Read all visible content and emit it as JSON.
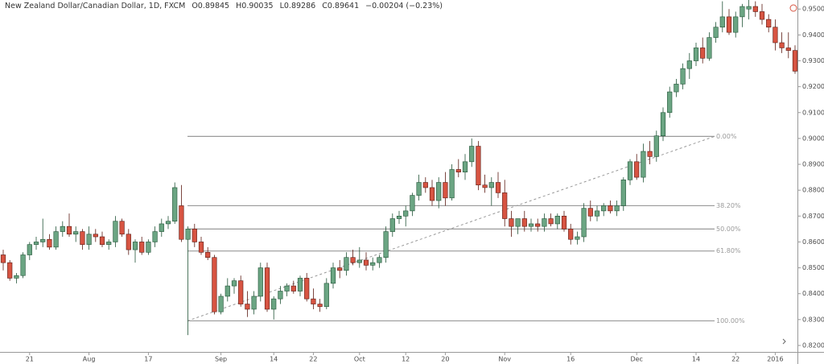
{
  "header": {
    "symbol": "New Zealand Dollar/Canadian Dollar, 1D, FXCM",
    "open": "O0.89845",
    "high": "H0.90035",
    "low": "L0.89286",
    "close": "C0.89641",
    "change": "−0.00204 (−0.23%)"
  },
  "chart_data": {
    "type": "candlestick",
    "categories": [
      null,
      null,
      null,
      null,
      "21",
      null,
      null,
      null,
      null,
      null,
      null,
      null,
      null,
      "Aug",
      null,
      null,
      null,
      null,
      null,
      null,
      null,
      null,
      "17",
      null,
      null,
      null,
      null,
      null,
      null,
      null,
      null,
      null,
      null,
      "Sep",
      null,
      null,
      null,
      null,
      null,
      null,
      null,
      "14",
      null,
      null,
      null,
      null,
      null,
      "22",
      null,
      null,
      null,
      null,
      null,
      null,
      "Oct",
      null,
      null,
      null,
      null,
      null,
      null,
      "12",
      null,
      null,
      null,
      null,
      null,
      "20",
      null,
      null,
      null,
      null,
      null,
      null,
      null,
      null,
      "Nov",
      null,
      null,
      null,
      null,
      null,
      null,
      null,
      null,
      null,
      "16",
      null,
      null,
      null,
      null,
      null,
      null,
      null,
      null,
      null,
      "Dec",
      null,
      null,
      null,
      null,
      null,
      null,
      null,
      null,
      "14",
      null,
      null,
      null,
      null,
      null,
      "22",
      null,
      null,
      null,
      null,
      null,
      "2016",
      null,
      null,
      null,
      null
    ],
    "series": [
      {
        "up_color": "#6ba583",
        "down_color": "#d75442",
        "up_border": "#225437",
        "down_border": "#5b1a13",
        "open": [
          0.855,
          0.852,
          0.846,
          0.847,
          0.855,
          0.859,
          0.86,
          0.861,
          0.858,
          0.864,
          0.866,
          0.863,
          0.864,
          0.859,
          0.863,
          0.862,
          0.859,
          0.86,
          0.868,
          0.863,
          0.857,
          0.86,
          0.856,
          0.86,
          0.864,
          0.867,
          0.868,
          0.874,
          0.861,
          0.865,
          0.86,
          0.856,
          0.854,
          0.833,
          0.839,
          0.843,
          0.845,
          0.836,
          0.834,
          0.839,
          0.85,
          0.834,
          0.838,
          0.841,
          0.843,
          0.841,
          0.846,
          0.838,
          0.836,
          0.835,
          0.844,
          0.85,
          0.849,
          0.854,
          0.852,
          0.853,
          0.851,
          0.852,
          0.854,
          0.864,
          0.869,
          0.87,
          0.872,
          0.878,
          0.883,
          0.881,
          0.876,
          0.883,
          0.877,
          0.888,
          0.887,
          0.891,
          0.897,
          0.882,
          0.881,
          0.883,
          0.879,
          0.869,
          0.866,
          0.869,
          0.866,
          0.867,
          0.866,
          0.869,
          0.867,
          0.87,
          0.865,
          0.861,
          0.862,
          0.873,
          0.87,
          0.872,
          0.874,
          0.872,
          0.874,
          0.884,
          0.891,
          0.885,
          0.895,
          0.893,
          0.901,
          0.91,
          0.918,
          0.921,
          0.927,
          0.93,
          0.935,
          0.931,
          0.939,
          0.943,
          0.947,
          0.941,
          0.947,
          0.95,
          0.951,
          0.949,
          0.946,
          0.943,
          0.937,
          0.935,
          0.934
        ],
        "high": [
          0.857,
          0.853,
          0.848,
          0.856,
          0.86,
          0.862,
          0.869,
          0.863,
          0.866,
          0.868,
          0.871,
          0.866,
          0.865,
          0.866,
          0.865,
          0.864,
          0.861,
          0.87,
          0.869,
          0.865,
          0.861,
          0.862,
          0.861,
          0.866,
          0.869,
          0.87,
          0.883,
          0.882,
          0.866,
          0.867,
          0.862,
          0.858,
          0.855,
          0.84,
          0.846,
          0.846,
          0.847,
          0.841,
          0.841,
          0.852,
          0.852,
          0.839,
          0.843,
          0.844,
          0.845,
          0.847,
          0.848,
          0.842,
          0.838,
          0.846,
          0.852,
          0.853,
          0.856,
          0.857,
          0.858,
          0.856,
          0.854,
          0.855,
          0.866,
          0.871,
          0.872,
          0.874,
          0.879,
          0.886,
          0.885,
          0.884,
          0.885,
          0.887,
          0.89,
          0.892,
          0.894,
          0.9,
          0.899,
          0.886,
          0.885,
          0.887,
          0.884,
          0.872,
          0.869,
          0.872,
          0.869,
          0.869,
          0.871,
          0.871,
          0.871,
          0.872,
          0.867,
          0.864,
          0.875,
          0.876,
          0.874,
          0.875,
          0.876,
          0.876,
          0.885,
          0.892,
          0.894,
          0.898,
          0.899,
          0.903,
          0.912,
          0.92,
          0.923,
          0.929,
          0.933,
          0.937,
          0.939,
          0.941,
          0.945,
          0.953,
          0.95,
          0.949,
          0.952,
          0.958,
          0.953,
          0.952,
          0.948,
          0.946,
          0.941,
          0.941,
          0.936
        ],
        "low": [
          0.849,
          0.845,
          0.844,
          0.846,
          0.853,
          0.857,
          0.858,
          0.857,
          0.857,
          0.862,
          0.862,
          0.86,
          0.857,
          0.857,
          0.86,
          0.858,
          0.857,
          0.858,
          0.862,
          0.855,
          0.852,
          0.855,
          0.855,
          0.858,
          0.862,
          0.865,
          0.867,
          0.86,
          0.824,
          0.858,
          0.855,
          0.853,
          0.832,
          0.832,
          0.837,
          0.84,
          0.835,
          0.831,
          0.832,
          0.837,
          0.833,
          0.83,
          0.836,
          0.839,
          0.84,
          0.839,
          0.837,
          0.834,
          0.833,
          0.834,
          0.842,
          0.846,
          0.847,
          0.851,
          0.85,
          0.849,
          0.849,
          0.85,
          0.852,
          0.862,
          0.867,
          0.866,
          0.87,
          0.876,
          0.879,
          0.874,
          0.873,
          0.874,
          0.876,
          0.885,
          0.884,
          0.889,
          0.88,
          0.879,
          0.874,
          0.877,
          0.866,
          0.862,
          0.863,
          0.864,
          0.864,
          0.864,
          0.864,
          0.866,
          0.865,
          0.864,
          0.859,
          0.859,
          0.86,
          0.868,
          0.868,
          0.87,
          0.871,
          0.87,
          0.872,
          0.882,
          0.884,
          0.883,
          0.89,
          0.891,
          0.899,
          0.908,
          0.916,
          0.919,
          0.923,
          0.928,
          0.929,
          0.93,
          0.937,
          0.941,
          0.94,
          0.939,
          0.943,
          0.946,
          0.947,
          0.944,
          0.941,
          0.934,
          0.933,
          0.931,
          0.925
        ],
        "close": [
          0.852,
          0.846,
          0.847,
          0.855,
          0.859,
          0.86,
          0.861,
          0.858,
          0.864,
          0.866,
          0.863,
          0.864,
          0.859,
          0.863,
          0.862,
          0.859,
          0.86,
          0.868,
          0.863,
          0.857,
          0.86,
          0.856,
          0.86,
          0.864,
          0.867,
          0.868,
          0.881,
          0.861,
          0.865,
          0.86,
          0.856,
          0.854,
          0.833,
          0.839,
          0.843,
          0.845,
          0.836,
          0.834,
          0.839,
          0.85,
          0.834,
          0.838,
          0.841,
          0.843,
          0.841,
          0.846,
          0.838,
          0.836,
          0.835,
          0.844,
          0.85,
          0.849,
          0.854,
          0.852,
          0.853,
          0.851,
          0.852,
          0.854,
          0.864,
          0.869,
          0.87,
          0.872,
          0.878,
          0.883,
          0.881,
          0.876,
          0.883,
          0.877,
          0.888,
          0.887,
          0.891,
          0.897,
          0.882,
          0.881,
          0.883,
          0.879,
          0.869,
          0.866,
          0.869,
          0.866,
          0.867,
          0.866,
          0.869,
          0.867,
          0.87,
          0.865,
          0.861,
          0.862,
          0.873,
          0.87,
          0.872,
          0.874,
          0.872,
          0.874,
          0.884,
          0.891,
          0.885,
          0.895,
          0.893,
          0.901,
          0.91,
          0.918,
          0.921,
          0.927,
          0.93,
          0.935,
          0.931,
          0.939,
          0.943,
          0.947,
          0.941,
          0.947,
          0.951,
          0.951,
          0.949,
          0.946,
          0.943,
          0.937,
          0.935,
          0.934,
          0.926
        ]
      }
    ],
    "ylim": [
      0.8175,
      0.9535
    ],
    "yticks": [
      {
        "value": 0.82,
        "label": "0.82000"
      },
      {
        "value": 0.83,
        "label": "0.83000"
      },
      {
        "value": 0.84,
        "label": "0.84000"
      },
      {
        "value": 0.85,
        "label": "0.85000"
      },
      {
        "value": 0.86,
        "label": "0.86000"
      },
      {
        "value": 0.87,
        "label": "0.87000"
      },
      {
        "value": 0.88,
        "label": "0.88000"
      },
      {
        "value": 0.89,
        "label": "0.89000"
      },
      {
        "value": 0.9,
        "label": "0.90000"
      },
      {
        "value": 0.91,
        "label": "0.91000"
      },
      {
        "value": 0.92,
        "label": "0.92000"
      },
      {
        "value": 0.93,
        "label": "0.93000"
      },
      {
        "value": 0.94,
        "label": "0.94000"
      },
      {
        "value": 0.95,
        "label": "0.95000"
      }
    ],
    "fib_levels": [
      {
        "value": 0.9008,
        "label": "0.00%"
      },
      {
        "value": 0.874,
        "label": "38.20%"
      },
      {
        "value": 0.865,
        "label": "50.00%"
      },
      {
        "value": 0.8565,
        "label": "61.80%"
      },
      {
        "value": 0.8295,
        "label": "100.00%"
      }
    ]
  }
}
